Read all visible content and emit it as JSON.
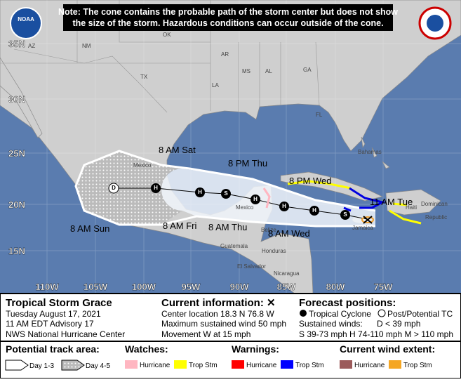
{
  "note": [
    "Note: The cone contains the probable path of the storm center but does not show",
    "the size of the storm. Hazardous conditions can occur outside of the cone."
  ],
  "logo": "NOAA",
  "map": {
    "latitude_labels": [
      "35N",
      "30N",
      "25N",
      "20N",
      "15N"
    ],
    "longitude_labels": [
      "110W",
      "105W",
      "100W",
      "95W",
      "90W",
      "85W",
      "80W",
      "75W"
    ],
    "region_labels": [
      "AZ",
      "NM",
      "OK",
      "TX",
      "AR",
      "LA",
      "MS",
      "AL",
      "GA",
      "FL",
      "Mexico",
      "Bahamas",
      "Mexico",
      "Belize",
      "Guatemala",
      "Honduras",
      "El Salvador",
      "Nicaragua",
      "Jamaica",
      "Haiti",
      "Dominican",
      "Republic"
    ],
    "forecast_times": [
      "8 AM Sat",
      "8 PM Thu",
      "8 PM Wed",
      "11 AM Tue",
      "8 AM Sun",
      "8 AM Fri",
      "8 AM Thu",
      "8 AM Wed"
    ],
    "markers": [
      "D",
      "H",
      "H",
      "S",
      "H",
      "H",
      "H",
      "S"
    ]
  },
  "info": {
    "storm": "Tropical Storm Grace",
    "date": "Tuesday August 17, 2021",
    "advisory": "11 AM EDT Advisory 17",
    "center": "NWS National Hurricane Center",
    "current_title": "Current information: ✕",
    "current": [
      "Center location 18.3 N 76.8 W",
      "Maximum sustained wind 50 mph",
      "Movement W at 15 mph"
    ],
    "forecast_title": "Forecast positions:",
    "tropical_cyclone": "Tropical Cyclone",
    "post_tc": "Post/Potential TC",
    "sustained": "Sustained winds:",
    "d_range": "D < 39 mph",
    "ranges": "S 39-73 mph  H 74-110 mph  M > 110 mph"
  },
  "legend": {
    "track_title": "Potential track area:",
    "day13": "Day 1-3",
    "day45": "Day 4-5",
    "watches_title": "Watches:",
    "watch_hurricane": "Hurricane",
    "watch_ts": "Trop Stm",
    "warnings_title": "Warnings:",
    "warn_hurricane": "Hurricane",
    "warn_ts": "Trop Stm",
    "wind_title": "Current wind extent:",
    "wind_hurricane": "Hurricane",
    "wind_ts": "Trop Stm"
  }
}
